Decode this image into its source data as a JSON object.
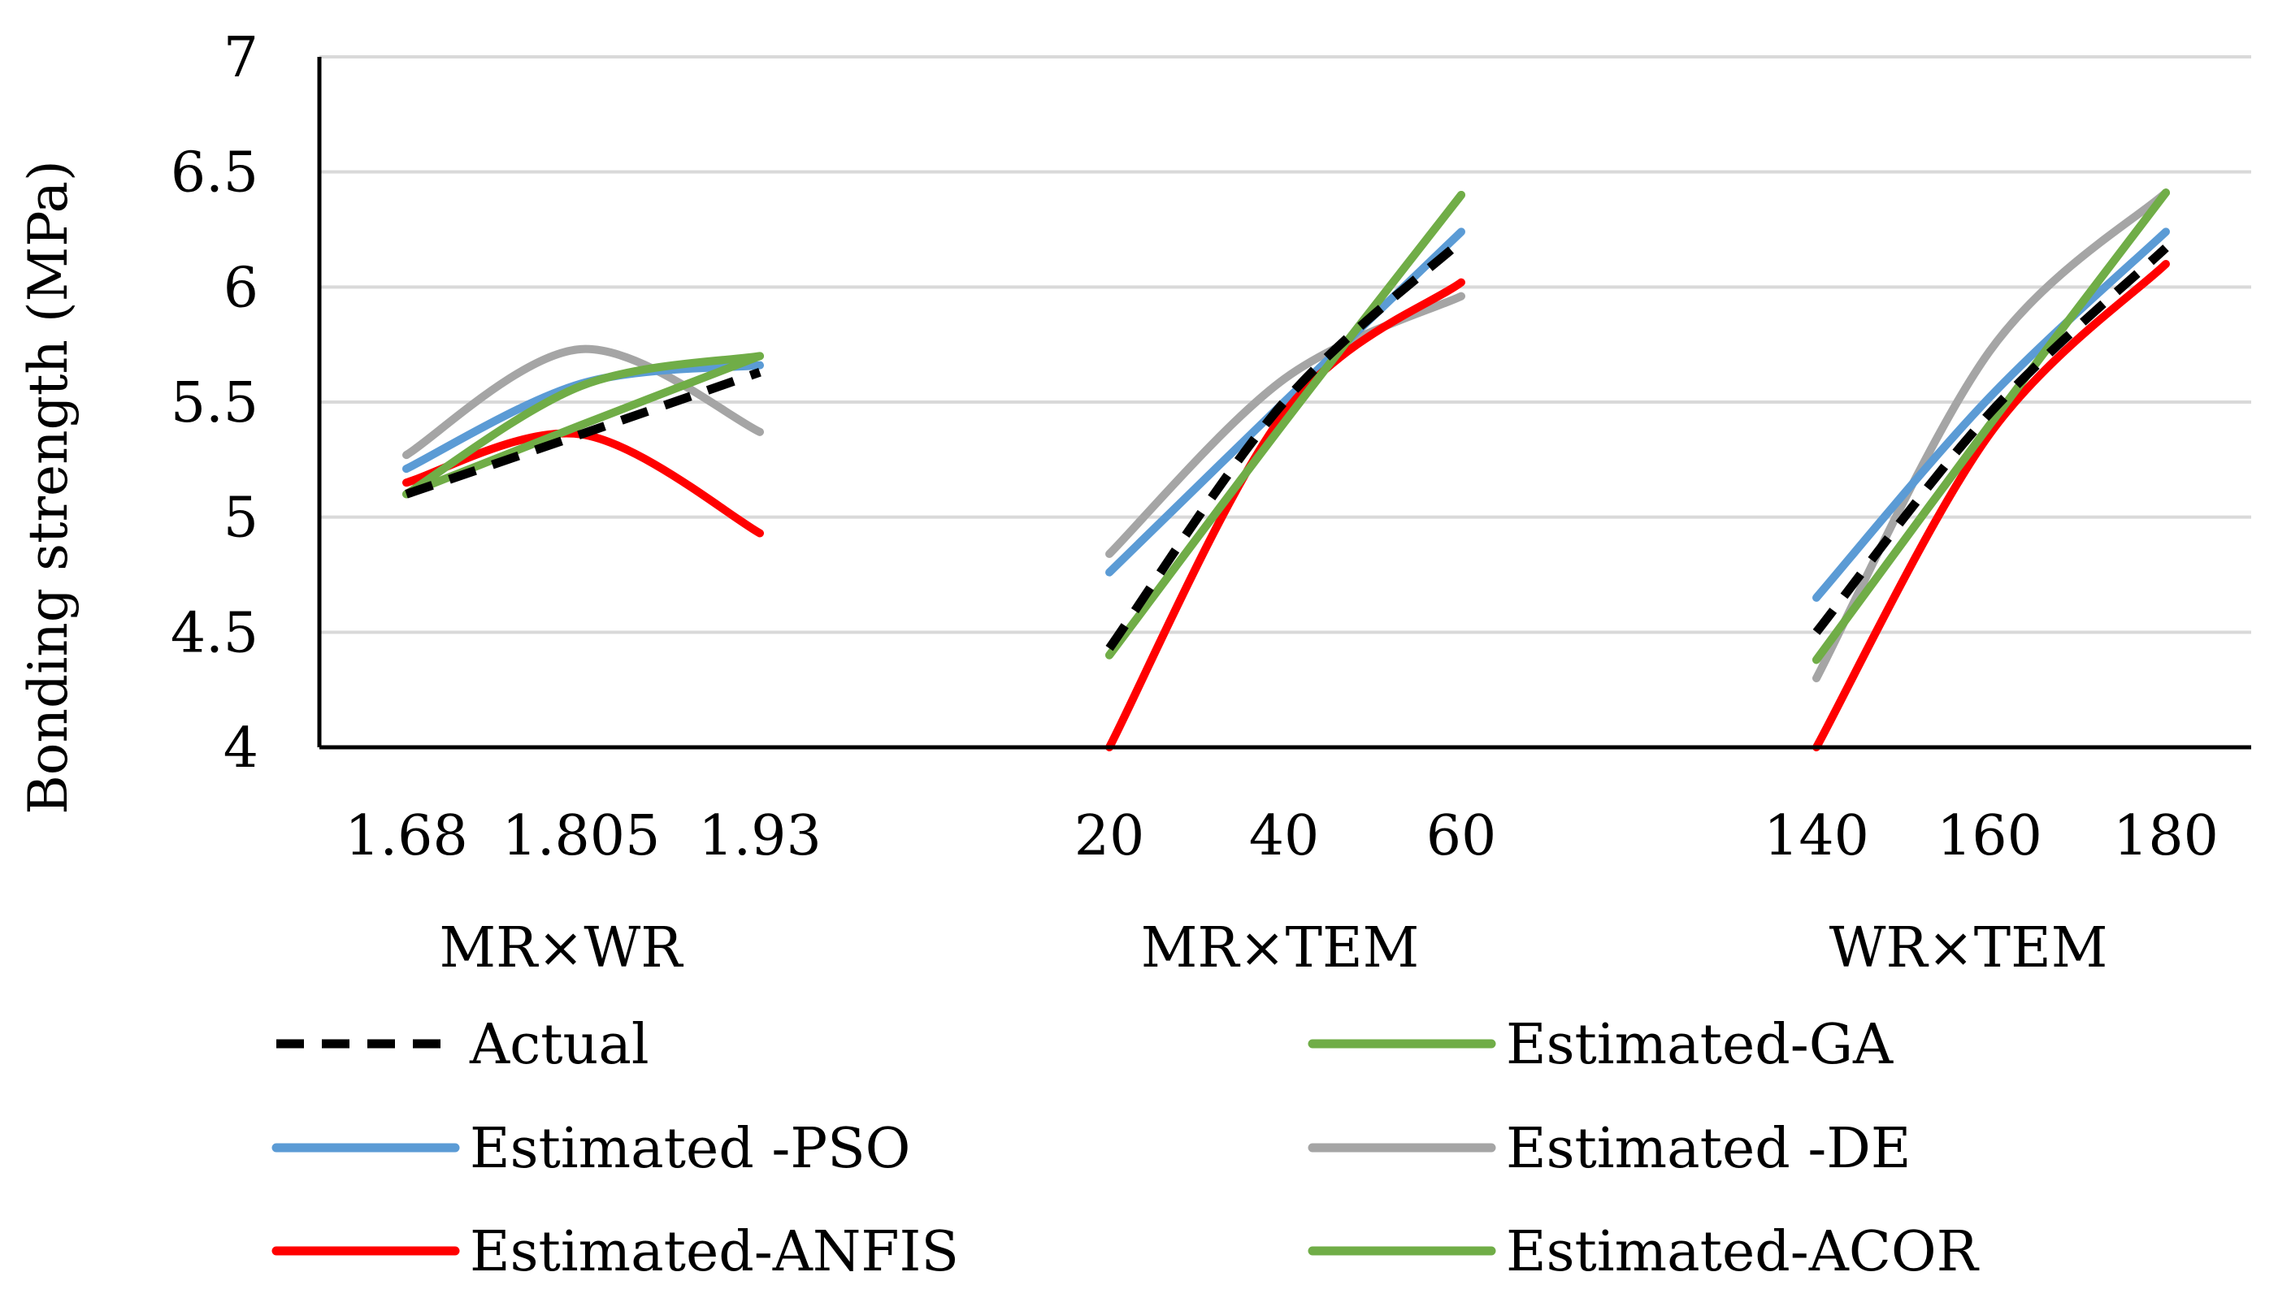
{
  "chart_data": {
    "type": "line",
    "title": "",
    "ylabel": "Bonding strength (MPa)",
    "xlabel": "",
    "ylim": [
      4,
      7
    ],
    "yticks": [
      "4",
      "4.5",
      "5",
      "5.5",
      "6",
      "6.5",
      "7"
    ],
    "grid": true,
    "legend_position": "bottom",
    "groups": [
      {
        "name": "MR×WR",
        "x": [
          "1.68",
          "1.805",
          "1.93"
        ],
        "series": {
          "Actual": [
            5.1,
            5.36,
            5.63
          ],
          "Estimated-GA": [
            5.1,
            5.57,
            5.7
          ],
          "Estimated -PSO": [
            5.21,
            5.58,
            5.66
          ],
          "Estimated -DE": [
            5.27,
            5.73,
            5.37
          ],
          "Estimated-ANFIS": [
            5.15,
            5.36,
            4.93
          ],
          "Estimated-ACOR": [
            5.1,
            5.4,
            5.7
          ]
        }
      },
      {
        "name": "MR×TEM",
        "x": [
          "20",
          "40",
          "60"
        ],
        "series": {
          "Actual": [
            4.43,
            5.5,
            6.2
          ],
          "Estimated-GA": [
            4.4,
            5.41,
            6.4
          ],
          "Estimated -PSO": [
            4.76,
            5.5,
            6.24
          ],
          "Estimated -DE": [
            4.84,
            5.6,
            5.96
          ],
          "Estimated-ANFIS": [
            4.0,
            5.45,
            6.02
          ],
          "Estimated-ACOR": [
            4.4,
            5.41,
            6.4
          ]
        }
      },
      {
        "name": "WR×TEM",
        "x": [
          "140",
          "160",
          "180"
        ],
        "series": {
          "Actual": [
            4.5,
            5.45,
            6.17
          ],
          "Estimated-GA": [
            4.38,
            5.4,
            6.41
          ],
          "Estimated -PSO": [
            4.65,
            5.52,
            6.24
          ],
          "Estimated -DE": [
            4.3,
            5.72,
            6.41
          ],
          "Estimated-ANFIS": [
            4.0,
            5.36,
            6.1
          ],
          "Estimated-ACOR": [
            4.38,
            5.4,
            6.41
          ]
        }
      }
    ],
    "legend": [
      {
        "name": "Actual",
        "color": "#000000",
        "dashed": true
      },
      {
        "name": "Estimated-GA",
        "color": "#70ad47",
        "dashed": false
      },
      {
        "name": "Estimated -PSO",
        "color": "#5b9bd5",
        "dashed": false
      },
      {
        "name": "Estimated -DE",
        "color": "#a5a5a5",
        "dashed": false
      },
      {
        "name": "Estimated-ANFIS",
        "color": "#ff0000",
        "dashed": false
      },
      {
        "name": "Estimated-ACOR",
        "color": "#70ad47",
        "dashed": false
      }
    ],
    "draw_order": [
      "Estimated -DE",
      "Estimated -PSO",
      "Estimated-ANFIS",
      "Estimated-GA",
      "Estimated-ACOR",
      "Actual"
    ]
  }
}
